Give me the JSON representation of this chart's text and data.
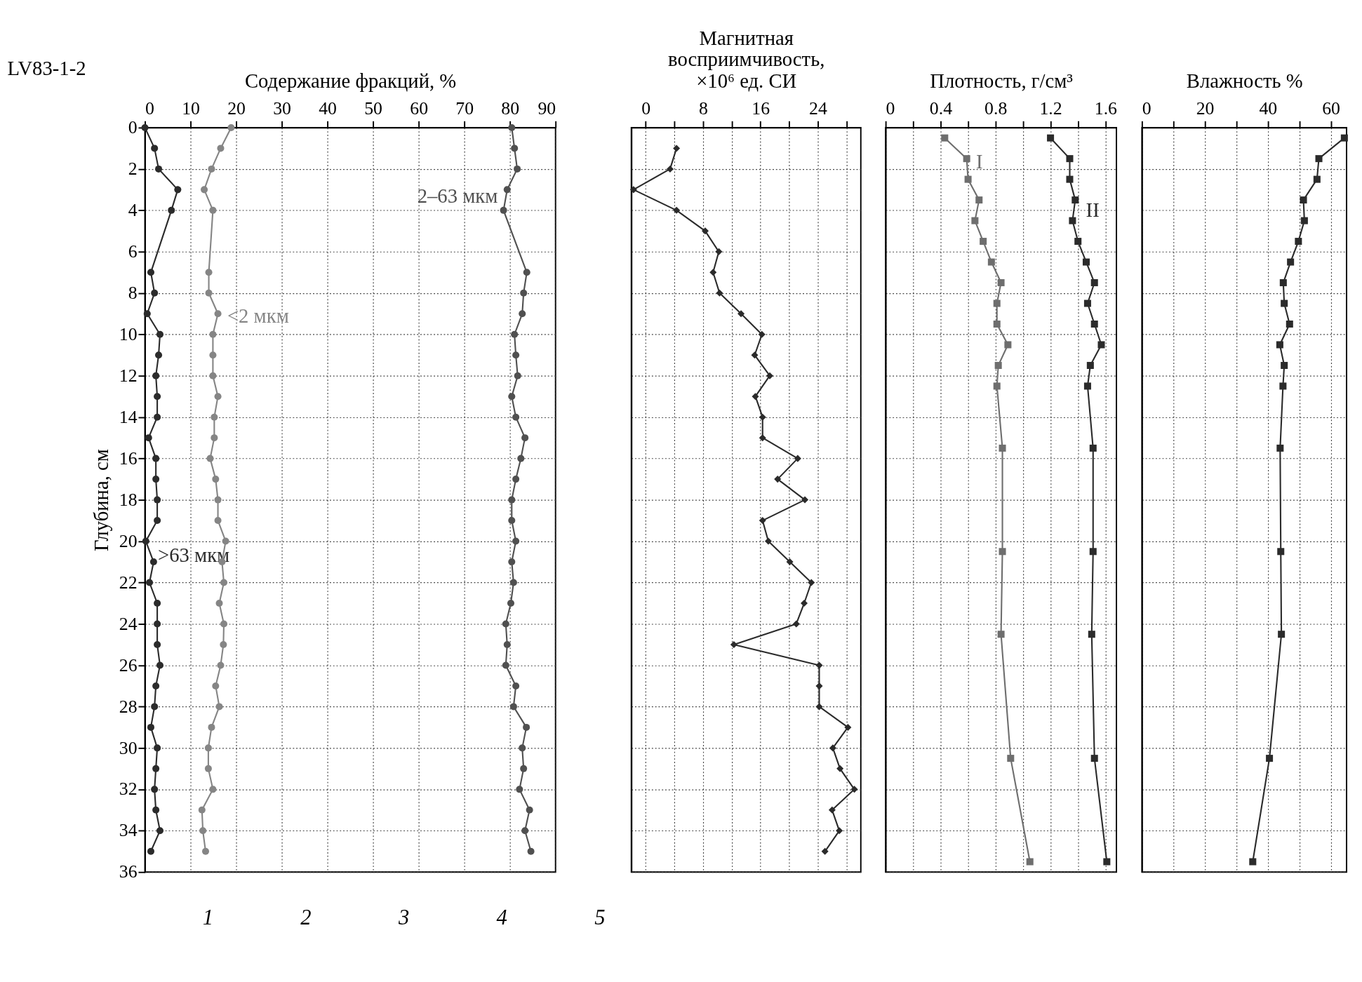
{
  "chart_data": [
    {
      "type": "line",
      "orientation": "horizontal",
      "xlabel": "Содержание фракций, %",
      "ylabel": "Глубина, см",
      "xlim": [
        0,
        90
      ],
      "xticks": [
        0,
        10,
        20,
        30,
        40,
        50,
        60,
        70,
        80,
        90
      ],
      "ylim": [
        36,
        0
      ],
      "yticks": [
        0,
        2,
        4,
        6,
        8,
        10,
        12,
        14,
        16,
        18,
        20,
        22,
        24,
        26,
        28,
        30,
        32,
        34,
        36
      ],
      "grid": true,
      "marker": "circle",
      "annotations": [
        "LV83-1-2",
        "1",
        "2",
        "3",
        "4",
        "5"
      ],
      "x": [
        0,
        1,
        2,
        3,
        4,
        7,
        8,
        9,
        10,
        11,
        12,
        13,
        14,
        15,
        16,
        17,
        18,
        19,
        20,
        21,
        22,
        23,
        24,
        25,
        26,
        27,
        28,
        29,
        30,
        31,
        32,
        33,
        34,
        35
      ],
      "series": [
        {
          "name": ">63 мкм",
          "color": "#2b2b2b",
          "values": [
            0,
            2.1,
            3.0,
            7.2,
            5.8,
            1.3,
            2.1,
            0.5,
            3.3,
            3.0,
            2.4,
            2.7,
            2.7,
            0.8,
            2.4,
            2.4,
            2.7,
            2.7,
            0.2,
            1.9,
            1.0,
            2.7,
            2.7,
            2.7,
            3.3,
            2.4,
            2.1,
            1.3,
            2.7,
            2.4,
            2.1,
            2.4,
            3.3,
            1.3
          ]
        },
        {
          "name": "<2 мкм",
          "color": "#858585",
          "values": [
            18.9,
            16.6,
            14.6,
            13.0,
            14.9,
            14.0,
            14.0,
            16.0,
            14.9,
            14.9,
            14.9,
            16.0,
            15.2,
            15.2,
            14.3,
            15.5,
            16.0,
            16.0,
            17.7,
            16.9,
            17.3,
            16.3,
            17.3,
            17.2,
            16.6,
            15.5,
            16.3,
            14.6,
            13.9,
            13.9,
            14.9,
            12.5,
            12.7,
            13.3
          ]
        },
        {
          "name": "2–63 мкм",
          "color": "#505050",
          "values": [
            80.4,
            81.0,
            81.6,
            79.4,
            78.6,
            83.7,
            83.0,
            82.7,
            81.0,
            81.3,
            81.7,
            80.4,
            81.3,
            83.3,
            82.4,
            81.3,
            80.4,
            80.4,
            81.3,
            80.4,
            80.8,
            80.2,
            79.1,
            79.4,
            79.1,
            81.3,
            80.8,
            83.6,
            82.7,
            83.0,
            82.1,
            84.3,
            83.3,
            84.6
          ]
        }
      ]
    },
    {
      "type": "line",
      "orientation": "horizontal",
      "xlabel": "Магнитная восприимчивость, ×10⁶ ед. СИ",
      "xlim": [
        -2,
        30
      ],
      "xticks": [
        0,
        {
          "value": 4,
          "label": null
        },
        8,
        {
          "value": 12,
          "label": null
        },
        16,
        {
          "value": 20,
          "label": null
        },
        24,
        {
          "value": 28,
          "label": null
        }
      ],
      "ylim": [
        36,
        0
      ],
      "yticks": [
        0,
        2,
        4,
        6,
        8,
        10,
        12,
        14,
        16,
        18,
        20,
        22,
        24,
        26,
        28,
        30,
        32,
        34,
        36
      ],
      "tick_labels": "x",
      "grid": true,
      "marker": "diamond",
      "x": [
        1,
        2,
        3,
        4,
        5,
        6,
        7,
        8,
        9,
        10,
        11,
        12,
        13,
        14,
        15,
        16,
        17,
        18,
        19,
        20,
        21,
        22,
        23,
        24,
        25,
        26,
        27,
        28,
        29,
        30,
        31,
        32,
        33,
        34,
        35
      ],
      "series": [
        {
          "color": "#2b2b2b",
          "values": [
            4.3,
            3.4,
            -1.7,
            4.3,
            8.3,
            10.2,
            9.4,
            10.3,
            13.3,
            16.2,
            15.2,
            17.3,
            15.3,
            16.3,
            16.3,
            21.2,
            18.4,
            22.2,
            16.3,
            17.1,
            20.1,
            23.1,
            22.1,
            21.0,
            12.3,
            24.2,
            24.2,
            24.2,
            28.2,
            26.1,
            27.1,
            29.1,
            26.0,
            27.0,
            25.0
          ]
        }
      ]
    },
    {
      "type": "line",
      "orientation": "horizontal",
      "xlabel": "Плотность, г/см³",
      "xlim": [
        0,
        1.68
      ],
      "xticks": [
        0,
        {
          "value": 0.2,
          "label": null
        },
        0.4,
        {
          "value": 0.6,
          "label": null
        },
        0.8,
        {
          "value": 1.0,
          "label": null
        },
        1.2,
        {
          "value": 1.4,
          "label": null
        },
        1.6
      ],
      "ylim": [
        36,
        0
      ],
      "yticks": [
        0,
        2,
        4,
        6,
        8,
        10,
        12,
        14,
        16,
        18,
        20,
        22,
        24,
        26,
        28,
        30,
        32,
        34,
        36
      ],
      "tick_labels": "x",
      "grid": true,
      "marker": "square",
      "x": [
        0.5,
        1.5,
        2.5,
        3.5,
        4.5,
        5.5,
        6.5,
        7.5,
        8.5,
        9.5,
        10.5,
        11.5,
        12.5,
        15.5,
        20.5,
        24.5,
        30.5,
        35.5
      ],
      "series": [
        {
          "name": "I",
          "color": "#6e6e6e",
          "values": [
            0.43,
            0.59,
            0.6,
            0.68,
            0.65,
            0.71,
            0.77,
            0.84,
            0.81,
            0.81,
            0.89,
            0.82,
            0.81,
            0.85,
            0.85,
            0.84,
            0.91,
            1.05
          ]
        },
        {
          "name": "II",
          "color": "#2b2b2b",
          "values": [
            1.2,
            1.34,
            1.34,
            1.38,
            1.36,
            1.4,
            1.46,
            1.52,
            1.47,
            1.52,
            1.57,
            1.49,
            1.47,
            1.51,
            1.51,
            1.5,
            1.52,
            1.61
          ]
        }
      ]
    },
    {
      "type": "line",
      "orientation": "horizontal",
      "xlabel": "Влажность %",
      "xlim": [
        0,
        65
      ],
      "xticks": [
        0,
        {
          "value": 10,
          "label": null
        },
        20,
        {
          "value": 30,
          "label": null
        },
        40,
        {
          "value": 50,
          "label": null
        },
        60
      ],
      "ylim": [
        36,
        0
      ],
      "yticks": [
        0,
        2,
        4,
        6,
        8,
        10,
        12,
        14,
        16,
        18,
        20,
        22,
        24,
        26,
        28,
        30,
        32,
        34,
        36
      ],
      "tick_labels": "x",
      "grid": true,
      "marker": "square",
      "x": [
        0.5,
        1.5,
        2.5,
        3.5,
        4.5,
        5.5,
        6.5,
        7.5,
        8.5,
        9.5,
        10.5,
        11.5,
        12.5,
        15.5,
        20.5,
        24.5,
        30.5,
        35.5
      ],
      "series": [
        {
          "color": "#2b2b2b",
          "values": [
            64.3,
            56.2,
            55.6,
            51.3,
            51.6,
            49.7,
            47.2,
            44.9,
            45.2,
            46.9,
            43.8,
            45.2,
            44.8,
            43.9,
            44.1,
            44.3,
            40.5,
            35.2
          ]
        }
      ]
    }
  ]
}
